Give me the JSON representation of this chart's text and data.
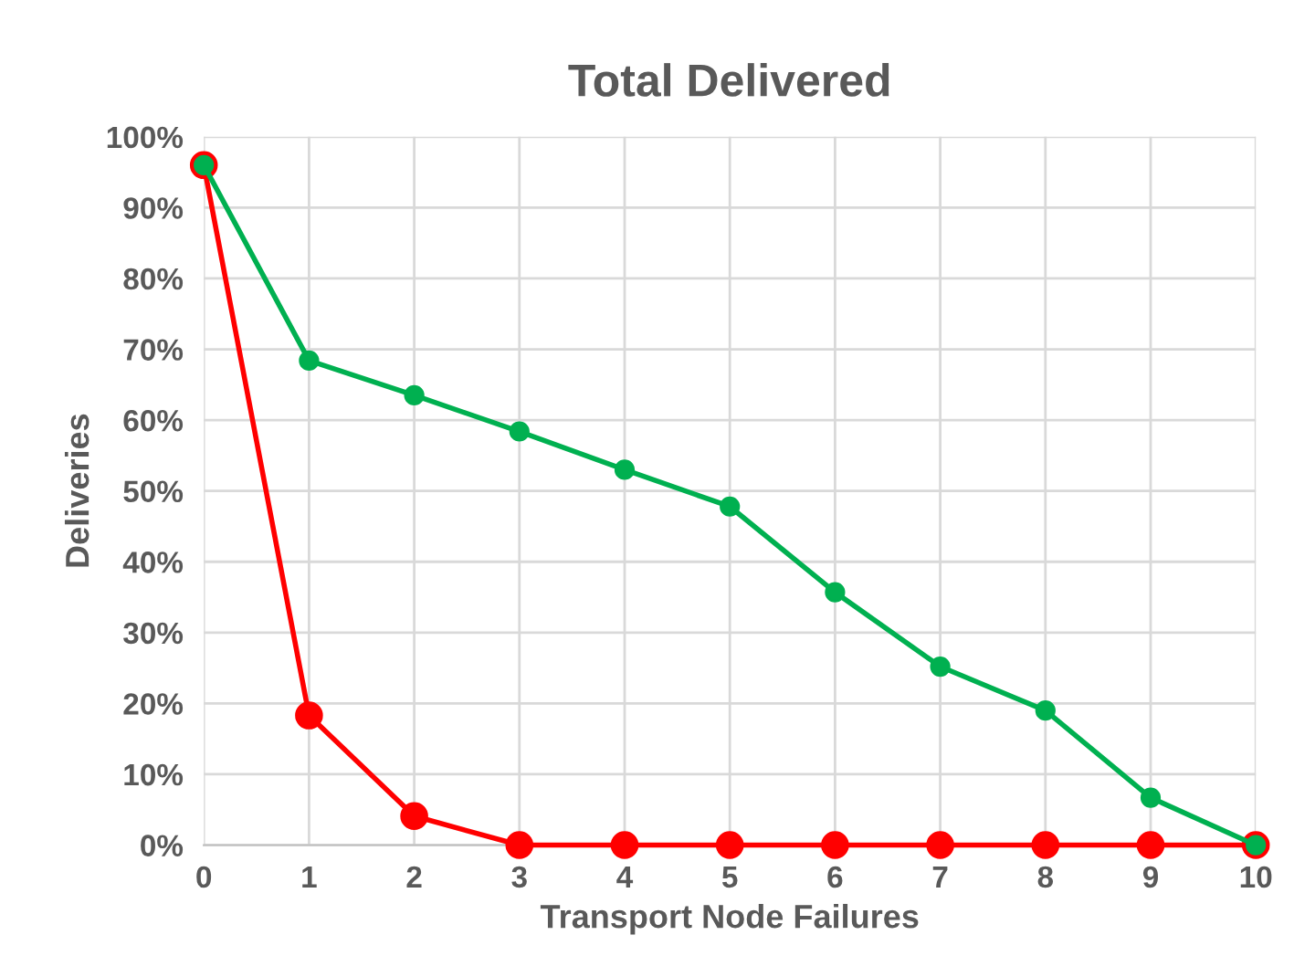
{
  "chart_data": {
    "type": "line",
    "title": "Total Delivered",
    "xlabel": "Transport Node Failures",
    "ylabel": "Deliveries",
    "x": [
      0,
      1,
      2,
      3,
      4,
      5,
      6,
      7,
      8,
      9,
      10
    ],
    "series": [
      {
        "color": "#00b050",
        "values": [
          96,
          68.4,
          63.5,
          58.4,
          53,
          47.8,
          35.7,
          25.2,
          19,
          6.7,
          0
        ]
      },
      {
        "color": "#ff0000",
        "values": [
          96,
          18.3,
          4.1,
          0,
          0,
          0,
          0,
          0,
          0,
          0,
          0
        ]
      }
    ],
    "xlim": [
      0,
      10
    ],
    "xticks": [
      0,
      1,
      2,
      3,
      4,
      5,
      6,
      7,
      8,
      9,
      10
    ],
    "ylim": [
      0,
      100
    ],
    "yticks": [
      {
        "value": 0,
        "label": "0%"
      },
      {
        "value": 10,
        "label": "10%"
      },
      {
        "value": 20,
        "label": "20%"
      },
      {
        "value": 30,
        "label": "30%"
      },
      {
        "value": 40,
        "label": "40%"
      },
      {
        "value": 50,
        "label": "50%"
      },
      {
        "value": 60,
        "label": "60%"
      },
      {
        "value": 70,
        "label": "70%"
      },
      {
        "value": 80,
        "label": "80%"
      },
      {
        "value": 90,
        "label": "90%"
      },
      {
        "value": 100,
        "label": "100%"
      }
    ],
    "grid": true,
    "marker": "circle",
    "line_style": "solid"
  }
}
